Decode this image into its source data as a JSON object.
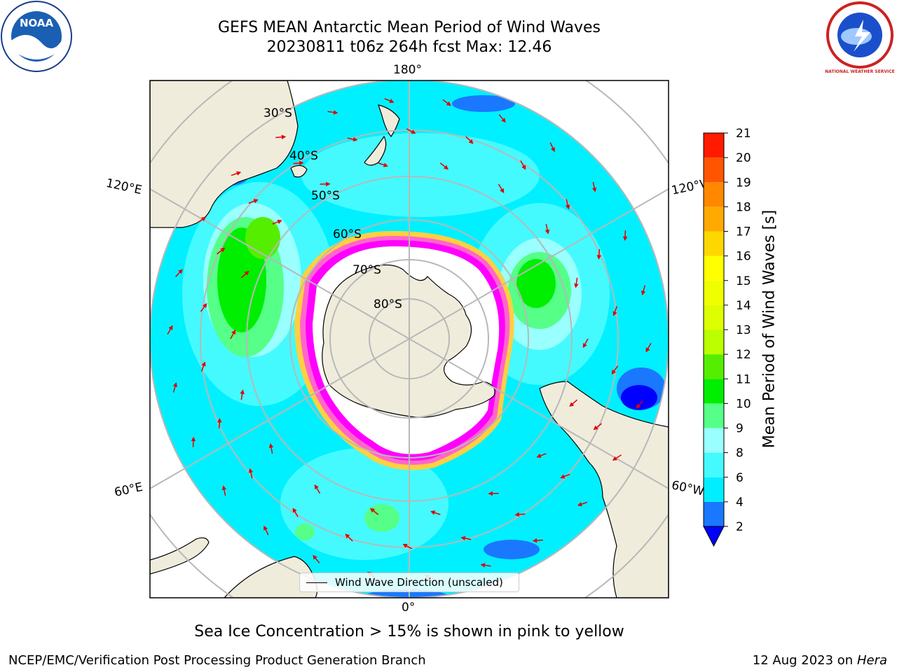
{
  "title_line1": "GEFS MEAN Antarctic Mean Period of Wind Waves",
  "title_line2": "20230811 t06z 264h fcst   Max: 12.46",
  "map": {
    "projection": "south-polar-stereographic",
    "meridian_labels": {
      "top": "180°",
      "bottom": "0°",
      "upper_left": "120°E",
      "upper_right": "120°W",
      "lower_left": "60°E",
      "lower_right": "60°W"
    },
    "latitude_labels": [
      "30°S",
      "40°S",
      "50°S",
      "60°S",
      "70°S",
      "80°S"
    ],
    "ocean_color": "#00f0ff",
    "land_color": "#efecdc",
    "arrow_color": "#e00000",
    "ice_edge_colors": [
      "#ff00ff",
      "#ff66cc",
      "#ffd040"
    ]
  },
  "legend_text": "Wind Wave Direction (unscaled)",
  "colorbar": {
    "label": "Mean Period of Wind Waves [s]",
    "ticks": [
      "2",
      "4",
      "6",
      "8",
      "9",
      "10",
      "11",
      "12",
      "13",
      "14",
      "15",
      "16",
      "17",
      "18",
      "19",
      "20",
      "21"
    ],
    "colors": [
      "#1a78ff",
      "#00eeff",
      "#44faff",
      "#99ffff",
      "#55ff88",
      "#00ee00",
      "#55ee00",
      "#bbff00",
      "#ddff00",
      "#f0ff00",
      "#ffff00",
      "#ffd700",
      "#ffaa00",
      "#ff8800",
      "#ff5500",
      "#ff1a00"
    ],
    "under_color": "#0000ff",
    "over_color": "#ff0000"
  },
  "footer_note": "Sea Ice Concentration > 15% is shown in pink to yellow",
  "footer_left": "NCEP/EMC/Verification Post Processing Product Generation Branch",
  "footer_right_date": "12 Aug 2023 on",
  "footer_right_host": "Hera",
  "logos": {
    "left": "NOAA",
    "right_top": "NATIONAL WEATHER SERVICE"
  }
}
